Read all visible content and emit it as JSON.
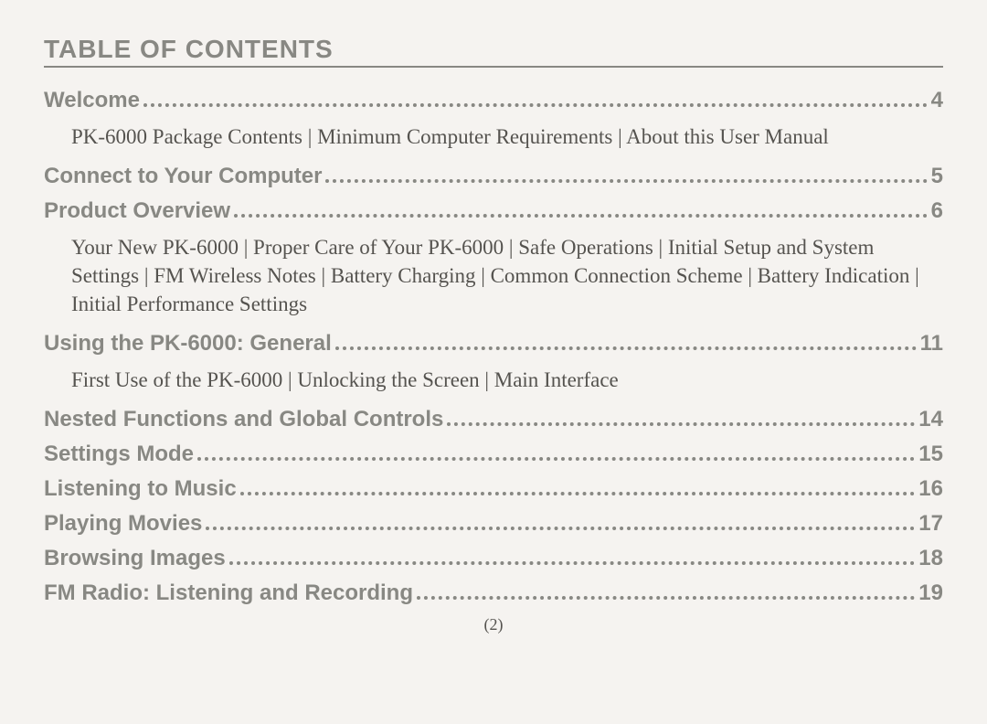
{
  "title": "TABLE OF CONTENTS",
  "entries": [
    {
      "label": "Welcome",
      "page": "4",
      "desc": "PK-6000 Package Contents | Minimum Computer Requirements | About this User Manual"
    },
    {
      "label": "Connect to Your Computer",
      "page": "5",
      "desc": null
    },
    {
      "label": "Product Overview",
      "page": "6",
      "desc": "Your New PK-6000 | Proper Care of Your PK-6000 | Safe Operations | Initial Setup and System Settings | FM Wireless Notes | Battery Charging | Common Connection Scheme | Battery Indication | Initial Performance Settings"
    },
    {
      "label": "Using the PK-6000: General",
      "page": "11",
      "desc": "First Use of the PK-6000 | Unlocking the Screen | Main Interface"
    },
    {
      "label": "Nested Functions and Global Controls",
      "page": "14",
      "desc": null
    },
    {
      "label": "Settings Mode",
      "page": "15",
      "desc": null
    },
    {
      "label": "Listening to Music",
      "page": "16",
      "desc": null
    },
    {
      "label": "Playing Movies",
      "page": "17",
      "desc": null
    },
    {
      "label": "Browsing Images",
      "page": "18",
      "desc": null
    },
    {
      "label": "FM Radio: Listening and Recording",
      "page": "19",
      "desc": null
    }
  ],
  "pageNumber": "(2)",
  "style": {
    "heading_color": "#888883",
    "body_color": "#55534f",
    "background": "#f5f3f0",
    "heading_font": "Arial Black",
    "body_font": "Georgia",
    "title_fontsize": 28,
    "label_fontsize": 24,
    "desc_fontsize": 23
  }
}
